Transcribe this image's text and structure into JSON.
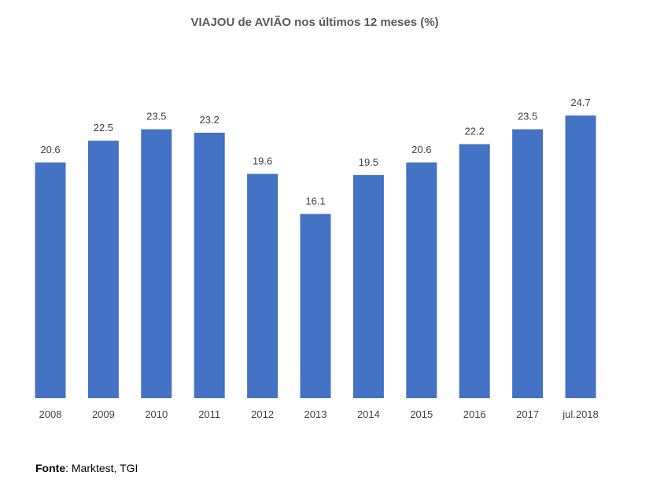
{
  "chart_data": {
    "type": "bar",
    "title": "VIAJOU de AVIÃO nos últimos 12 meses (%)",
    "categories": [
      "2008",
      "2009",
      "2010",
      "2011",
      "2012",
      "2013",
      "2014",
      "2015",
      "2016",
      "2017",
      "jul.2018"
    ],
    "values": [
      20.6,
      22.5,
      23.5,
      23.2,
      19.6,
      16.1,
      19.5,
      20.6,
      22.2,
      23.5,
      24.7
    ],
    "xlabel": "",
    "ylabel": "",
    "ylim": [
      0,
      28
    ],
    "grid": false,
    "data_labels": true,
    "bar_color": "#4472C4",
    "label_color": "#404040"
  },
  "source": {
    "label": "Fonte",
    "text": ": Marktest, TGI"
  }
}
